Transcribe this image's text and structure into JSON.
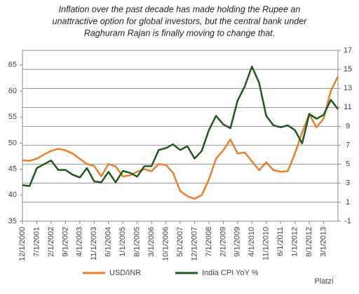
{
  "chart_data": {
    "type": "line",
    "title": [
      "Inflation over the past decade has made  holding the Rupee an",
      "unattractive option for global investors, but the central bank under",
      "Raghuram Rajan is  finally moving to change that."
    ],
    "categories": [
      "12/1/2000",
      null,
      "7/1/2001",
      null,
      "2/1/2002",
      null,
      "9/1/2002",
      null,
      "4/1/2003",
      null,
      "11/1/2003",
      null,
      "6/1/2004",
      null,
      "1/1/2005",
      null,
      "8/1/2005",
      null,
      "3/1/2006",
      null,
      "10/1/2006",
      null,
      "5/1/2007",
      null,
      "12/1/2007",
      null,
      "7/1/2008",
      null,
      "2/1/2009",
      null,
      "9/1/2009",
      null,
      "4/1/2010",
      null,
      "11/1/2010",
      null,
      "6/1/2011",
      null,
      "1/1/2012",
      null,
      "8/1/2012",
      null,
      "3/1/2013",
      null,
      null
    ],
    "series": [
      {
        "name": "USD/INR",
        "color": "#ed7d31",
        "values": [
          46.7,
          46.6,
          47.0,
          47.8,
          48.5,
          48.9,
          48.6,
          48.0,
          47.0,
          46.0,
          45.6,
          43.6,
          46.0,
          45.5,
          43.6,
          43.8,
          44.5,
          45.0,
          44.6,
          46.0,
          45.8,
          44.3,
          40.8,
          39.8,
          39.3,
          40.0,
          43.0,
          47.0,
          48.6,
          50.7,
          48.0,
          48.2,
          46.5,
          44.8,
          46.3,
          44.8,
          44.5,
          44.6,
          48.0,
          52.0,
          55.6,
          53.0,
          54.7,
          60.0,
          62.8
        ]
      },
      {
        "name": "India CPI YoY %",
        "color": "#1e5a1e",
        "axis": "y2",
        "values": [
          2.8,
          2.7,
          4.6,
          5.0,
          5.4,
          4.4,
          4.4,
          3.9,
          3.6,
          4.6,
          3.2,
          3.1,
          4.2,
          3.1,
          4.3,
          4.1,
          3.7,
          4.8,
          4.8,
          6.5,
          6.7,
          7.1,
          6.5,
          6.9,
          5.6,
          6.4,
          8.6,
          10.1,
          9.2,
          8.8,
          11.7,
          13.2,
          15.3,
          13.6,
          10.1,
          9.1,
          8.9,
          9.1,
          8.6,
          7.2,
          10.3,
          9.8,
          10.2,
          11.8,
          10.8
        ]
      }
    ],
    "ylim": [
      35,
      67.8
    ],
    "yticks": [
      35,
      40,
      45,
      50,
      55,
      60,
      65
    ],
    "y2lim": [
      -1,
      17
    ],
    "y2ticks": [
      -1,
      1,
      3,
      5,
      7,
      9,
      11,
      13,
      15,
      17
    ],
    "grid": "y2",
    "legend": "bottom",
    "watermark": "Platzi"
  }
}
